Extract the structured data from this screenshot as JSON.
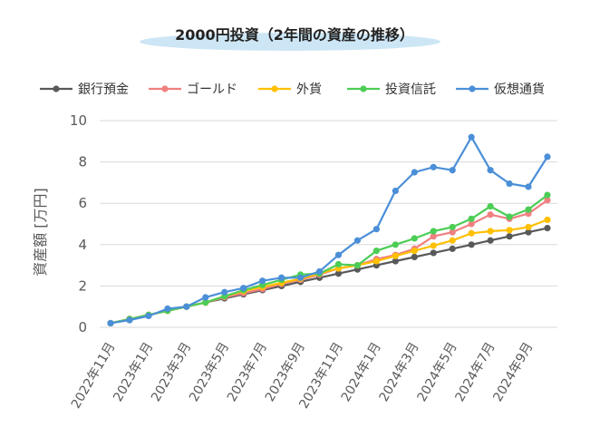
{
  "chart_data": {
    "type": "line",
    "title": "2000円投資（2年間の資産の推移）",
    "xlabel": "",
    "ylabel": "資産額 [万円]",
    "ylim": [
      0,
      10
    ],
    "yticks": [
      0,
      2,
      4,
      6,
      8,
      10
    ],
    "grid": true,
    "legend_position": "top",
    "x": [
      "2022年11月",
      "2022年12月",
      "2023年1月",
      "2023年2月",
      "2023年3月",
      "2023年4月",
      "2023年5月",
      "2023年6月",
      "2023年7月",
      "2023年8月",
      "2023年9月",
      "2023年10月",
      "2023年11月",
      "2023年12月",
      "2024年1月",
      "2024年2月",
      "2024年3月",
      "2024年4月",
      "2024年5月",
      "2024年6月",
      "2024年7月",
      "2024年8月",
      "2024年9月",
      "2024年10月"
    ],
    "xtick_labels": [
      "2022年11月",
      "2023年1月",
      "2023年3月",
      "2023年5月",
      "2023年7月",
      "2023年9月",
      "2023年11月",
      "2024年1月",
      "2024年3月",
      "2024年5月",
      "2024年7月",
      "2024年9月"
    ],
    "series": [
      {
        "name": "銀行預金",
        "color": "#595959",
        "values": [
          0.2,
          0.4,
          0.6,
          0.8,
          1.0,
          1.2,
          1.4,
          1.6,
          1.8,
          2.0,
          2.2,
          2.4,
          2.6,
          2.8,
          3.0,
          3.2,
          3.4,
          3.6,
          3.8,
          4.0,
          4.2,
          4.4,
          4.6,
          4.8
        ]
      },
      {
        "name": "ゴールド",
        "color": "#f08080",
        "values": [
          0.2,
          0.4,
          0.6,
          0.8,
          1.0,
          1.2,
          1.45,
          1.65,
          1.85,
          2.1,
          2.3,
          2.55,
          2.85,
          3.0,
          3.3,
          3.5,
          3.8,
          4.4,
          4.6,
          5.0,
          5.45,
          5.25,
          5.5,
          6.15
        ]
      },
      {
        "name": "外貨",
        "color": "#ffc000",
        "values": [
          0.2,
          0.4,
          0.6,
          0.8,
          1.0,
          1.2,
          1.5,
          1.75,
          1.95,
          2.15,
          2.35,
          2.6,
          2.85,
          3.0,
          3.2,
          3.45,
          3.7,
          3.95,
          4.2,
          4.55,
          4.65,
          4.7,
          4.85,
          5.2
        ]
      },
      {
        "name": "投資信託",
        "color": "#4ccd55",
        "values": [
          0.2,
          0.4,
          0.6,
          0.8,
          1.0,
          1.2,
          1.5,
          1.8,
          2.05,
          2.3,
          2.55,
          2.6,
          3.05,
          3.0,
          3.7,
          4.0,
          4.3,
          4.65,
          4.85,
          5.25,
          5.85,
          5.35,
          5.7,
          6.4
        ]
      },
      {
        "name": "仮想通貨",
        "color": "#4b8fd8",
        "values": [
          0.2,
          0.35,
          0.55,
          0.9,
          1.0,
          1.45,
          1.7,
          1.9,
          2.25,
          2.4,
          2.4,
          2.7,
          3.5,
          4.2,
          4.75,
          6.6,
          7.5,
          7.75,
          7.6,
          9.2,
          7.6,
          6.95,
          6.8,
          8.25
        ]
      }
    ]
  }
}
